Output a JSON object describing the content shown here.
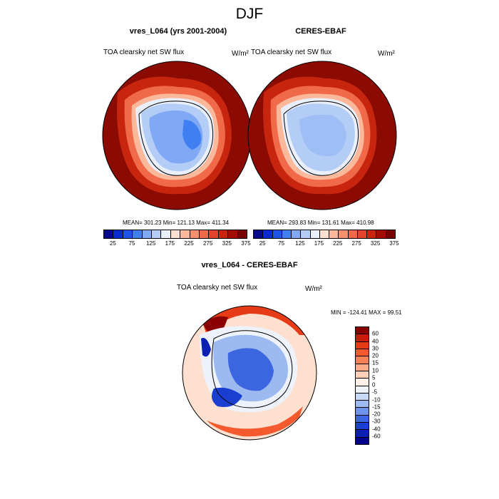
{
  "figure": {
    "title": "DJF"
  },
  "panels": [
    {
      "title": "vres_L064 (yrs 2001-2004)",
      "field_label": "TOA clearsky net SW flux",
      "units": "W/m²",
      "stats": "MEAN= 301.23  Min= 121.13  Max= 411.34"
    },
    {
      "title": "CERES-EBAF",
      "field_label": "TOA clearsky net SW flux",
      "units": "W/m²",
      "stats": "MEAN= 293.83  Min= 131.61  Max= 410.98"
    },
    {
      "title": "vres_L064 - CERES-EBAF",
      "field_label": "TOA clearsky net SW flux",
      "units": "W/m²",
      "stats": "MIN = -124.41 MAX =  99.51"
    }
  ],
  "colorbar_abs": {
    "colors": [
      "#08088a",
      "#0b2bd0",
      "#1e54e8",
      "#3f7ff2",
      "#7fa8f5",
      "#b3cdf7",
      "#eaf0fb",
      "#fde0cf",
      "#fbb89a",
      "#f7906d",
      "#f06a4a",
      "#e04529",
      "#c8250f",
      "#a30d05",
      "#7a0000"
    ],
    "tick_labels": [
      "25",
      "75",
      "125",
      "175",
      "225",
      "275",
      "325",
      "375"
    ]
  },
  "colorbar_diff": {
    "colors": [
      "#8b0000",
      "#c81d0a",
      "#e63b16",
      "#f45a2d",
      "#f88258",
      "#fbab88",
      "#fdd0b7",
      "#fdf0e8",
      "#eef3fb",
      "#c8d9f5",
      "#9cbaf0",
      "#6e93ea",
      "#3c66e0",
      "#1a3fd0",
      "#0b1fb3",
      "#02028a"
    ],
    "tick_labels": [
      "60",
      "40",
      "30",
      "20",
      "15",
      "10",
      "5",
      "0",
      "-5",
      "-10",
      "-15",
      "-20",
      "-30",
      "-40",
      "-60"
    ]
  },
  "chart_data": [
    {
      "type": "heatmap",
      "title": "vres_L064 (yrs 2001-2004)",
      "subtitle": "TOA clearsky net SW flux",
      "units": "W/m²",
      "projection": "south-polar stereographic",
      "stats": {
        "mean": 301.23,
        "min": 121.13,
        "max": 411.34
      },
      "levels": [
        25,
        50,
        75,
        100,
        125,
        150,
        175,
        200,
        225,
        250,
        275,
        300,
        325,
        350,
        375
      ]
    },
    {
      "type": "heatmap",
      "title": "CERES-EBAF",
      "subtitle": "TOA clearsky net SW flux",
      "units": "W/m²",
      "projection": "south-polar stereographic",
      "stats": {
        "mean": 293.83,
        "min": 131.61,
        "max": 410.98
      },
      "levels": [
        25,
        50,
        75,
        100,
        125,
        150,
        175,
        200,
        225,
        250,
        275,
        300,
        325,
        350,
        375
      ]
    },
    {
      "type": "heatmap",
      "title": "vres_L064 - CERES-EBAF",
      "subtitle": "TOA clearsky net SW flux",
      "units": "W/m²",
      "projection": "south-polar stereographic",
      "stats": {
        "min": -124.41,
        "max": 99.51
      },
      "levels": [
        -60,
        -40,
        -30,
        -20,
        -15,
        -10,
        -5,
        0,
        5,
        10,
        15,
        20,
        30,
        40,
        60
      ]
    }
  ]
}
